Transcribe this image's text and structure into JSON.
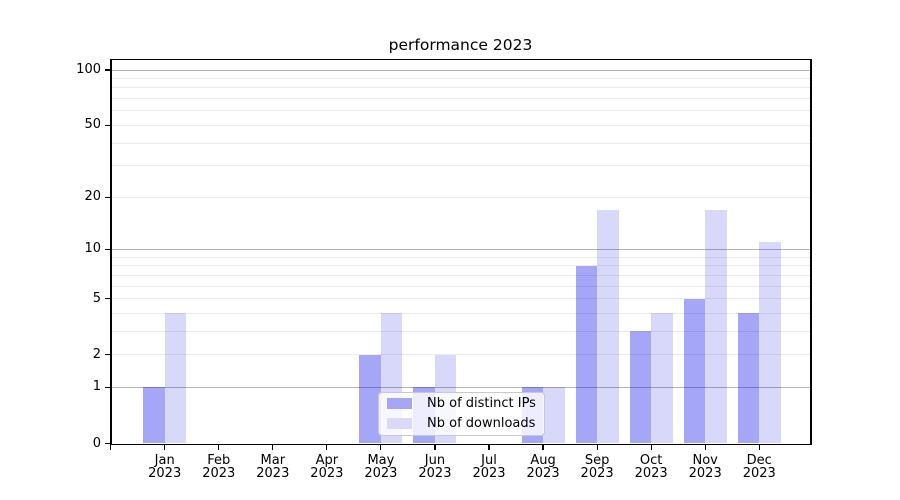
{
  "figure": {
    "title": "performance 2023"
  },
  "legend": {
    "items": [
      {
        "label": "Nb of distinct IPs",
        "swatch_color": "#a6a6f7"
      },
      {
        "label": "Nb of downloads",
        "swatch_color": "#d9daf9"
      }
    ]
  },
  "axes": {
    "ytick_values": [
      0,
      1,
      2,
      5,
      10,
      20,
      50,
      100
    ],
    "months": [
      "Jan",
      "Feb",
      "Mar",
      "Apr",
      "May",
      "Jun",
      "Jul",
      "Aug",
      "Sep",
      "Oct",
      "Nov",
      "Dec"
    ],
    "year": "2023"
  },
  "chart_data": {
    "type": "bar",
    "title": "performance 2023",
    "categories": [
      "Jan 2023",
      "Feb 2023",
      "Mar 2023",
      "Apr 2023",
      "May 2023",
      "Jun 2023",
      "Jul 2023",
      "Aug 2023",
      "Sep 2023",
      "Oct 2023",
      "Nov 2023",
      "Dec 2023"
    ],
    "series": [
      {
        "name": "Nb of distinct IPs",
        "color": "#a6a6f7",
        "fill": "rgba(8,8,232,0.36)",
        "values": [
          1,
          0,
          0,
          0,
          2,
          1,
          0,
          1,
          8,
          3,
          5,
          4
        ]
      },
      {
        "name": "Nb of downloads",
        "color": "#d9daf9",
        "fill": "rgba(8,8,232,0.155)",
        "values": [
          4,
          0,
          0,
          0,
          4,
          2,
          0,
          1,
          17,
          4,
          17,
          11
        ]
      }
    ],
    "xlabel": "",
    "ylabel": "",
    "yscale": "log1p",
    "ylim": [
      0,
      100
    ],
    "ytick_values": [
      0,
      1,
      2,
      5,
      10,
      20,
      50,
      100
    ],
    "grid": {
      "major_values": [
        1,
        10,
        100
      ],
      "minor_values": [
        2,
        3,
        4,
        5,
        6,
        7,
        8,
        9,
        20,
        30,
        40,
        50,
        60,
        70,
        80,
        90
      ],
      "major_color": "#b5b5b5",
      "minor_color": "#ebebeb"
    },
    "legend_position": "lower center inside",
    "bar_width_ratio": 0.4
  }
}
